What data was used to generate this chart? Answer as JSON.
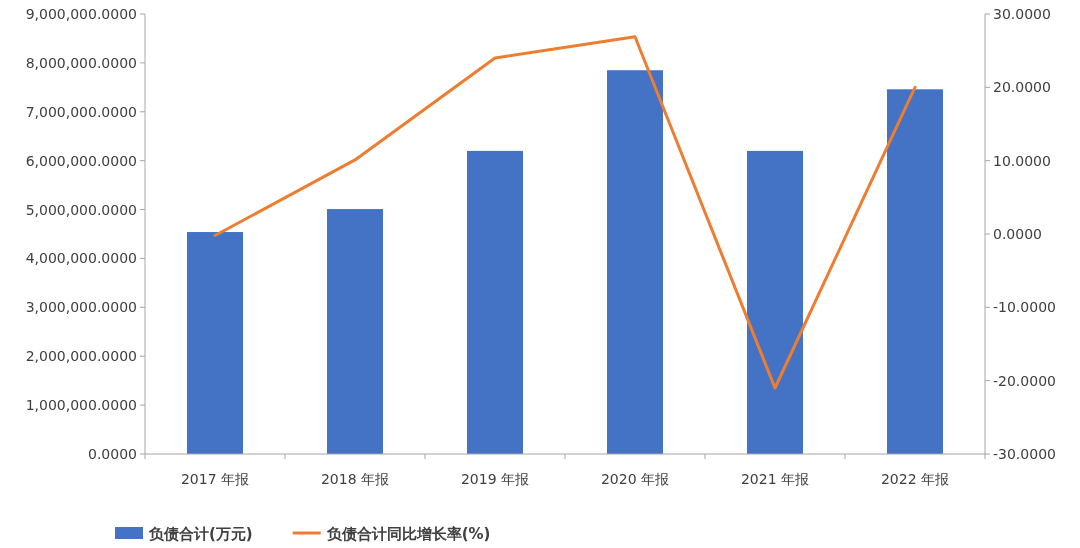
{
  "chart_data": {
    "type": "bar",
    "categories": [
      "2017 年报",
      "2018 年报",
      "2019 年报",
      "2020 年报",
      "2021 年报",
      "2022 年报"
    ],
    "series": [
      {
        "name": "负债合计(万元)",
        "color": "#4472c4",
        "values": [
          4540000,
          5010000,
          6200000,
          7850000,
          6200000,
          7460000
        ]
      },
      {
        "name": "负债合计同比增长率(%)",
        "type": "line",
        "axis": "y2",
        "color": "#ed7d31",
        "marker": "none",
        "line_style": "solid",
        "values": [
          -0.2,
          10.1,
          24.0,
          26.9,
          -21.0,
          20.0
        ]
      }
    ],
    "ylim": [
      0,
      9000000
    ],
    "yticks": [
      {
        "value": 0,
        "label": "0.0000"
      },
      {
        "value": 1000000,
        "label": "1,000,000.0000"
      },
      {
        "value": 2000000,
        "label": "2,000,000.0000"
      },
      {
        "value": 3000000,
        "label": "3,000,000.0000"
      },
      {
        "value": 4000000,
        "label": "4,000,000.0000"
      },
      {
        "value": 5000000,
        "label": "5,000,000.0000"
      },
      {
        "value": 6000000,
        "label": "6,000,000.0000"
      },
      {
        "value": 7000000,
        "label": "7,000,000.0000"
      },
      {
        "value": 8000000,
        "label": "8,000,000.0000"
      },
      {
        "value": 9000000,
        "label": "9,000,000.0000"
      }
    ],
    "y2lim": [
      -30,
      30
    ],
    "y2ticks": [
      {
        "value": -30,
        "label": "-30.0000"
      },
      {
        "value": -20,
        "label": "-20.0000"
      },
      {
        "value": -10,
        "label": "-10.0000"
      },
      {
        "value": 0,
        "label": "0.0000"
      },
      {
        "value": 10,
        "label": "10.0000"
      },
      {
        "value": 20,
        "label": "20.0000"
      },
      {
        "value": 30,
        "label": "30.0000"
      }
    ],
    "grid": false,
    "legend": "bottom left"
  }
}
